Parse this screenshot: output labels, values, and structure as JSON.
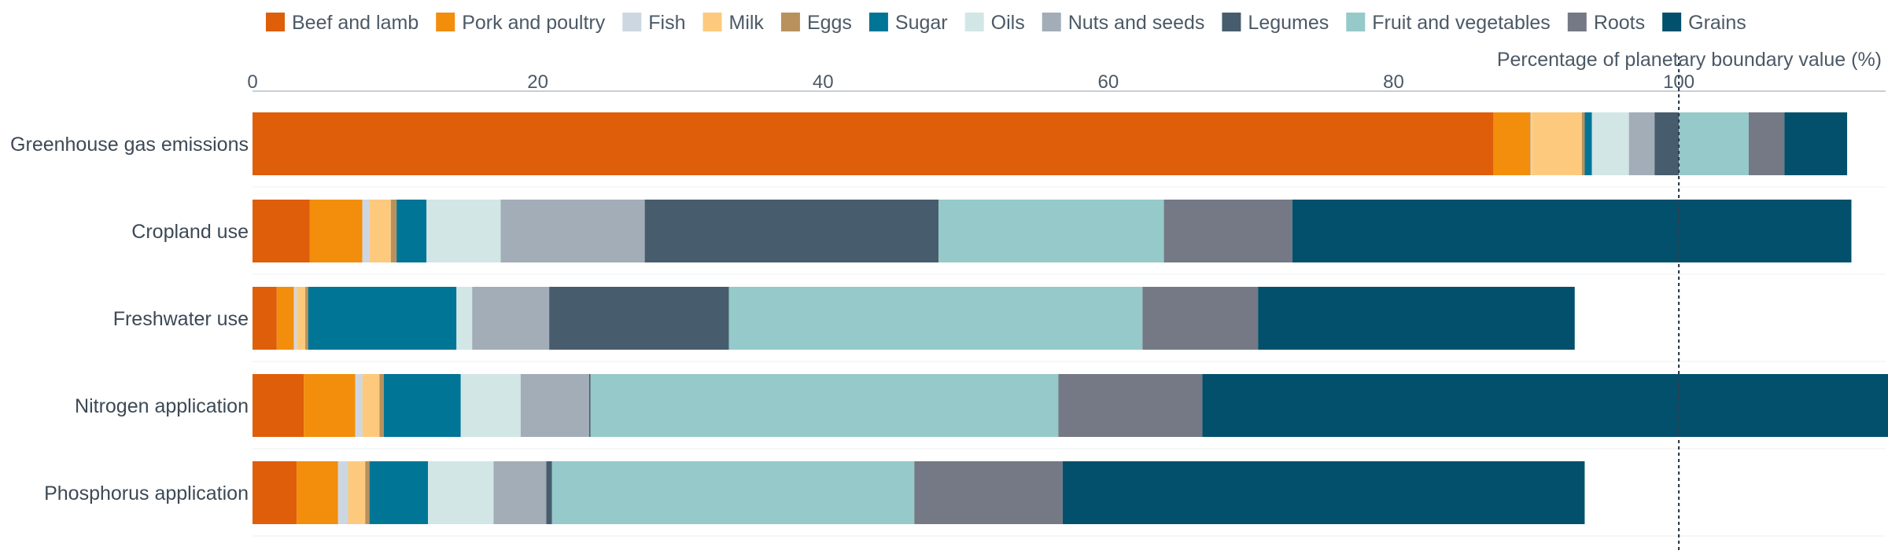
{
  "chart_data": {
    "type": "bar",
    "orientation": "horizontal",
    "stacked": true,
    "title": "",
    "xlabel": "Percentage of planetary boundary value (%)",
    "ylabel": "",
    "xlim": [
      0,
      114.5
    ],
    "xticks": [
      0,
      20,
      40,
      60,
      80,
      100
    ],
    "reference_line": {
      "value": 100,
      "style": "dotted"
    },
    "grid": true,
    "legend_position": "top",
    "categories": [
      "Greenhouse gas emissions",
      "Cropland use",
      "Freshwater use",
      "Nitrogen application",
      "Phosphorus application"
    ],
    "series": [
      {
        "name": "Beef and lamb",
        "color": "#df5e0a",
        "values": [
          87.0,
          4.0,
          1.7,
          3.6,
          3.1
        ]
      },
      {
        "name": "Pork and poultry",
        "color": "#f28e0c",
        "values": [
          2.6,
          3.7,
          1.2,
          3.6,
          2.9
        ]
      },
      {
        "name": "Fish",
        "color": "#cdd7e1",
        "values": [
          0.1,
          0.5,
          0.2,
          0.5,
          0.7
        ]
      },
      {
        "name": "Milk",
        "color": "#fdca7d",
        "values": [
          3.5,
          1.5,
          0.6,
          1.2,
          1.2
        ]
      },
      {
        "name": "Eggs",
        "color": "#b8915d",
        "values": [
          0.2,
          0.4,
          0.2,
          0.3,
          0.3
        ]
      },
      {
        "name": "Sugar",
        "color": "#007596",
        "values": [
          0.5,
          2.1,
          10.4,
          5.4,
          4.1
        ]
      },
      {
        "name": "Oils",
        "color": "#d2e6e6",
        "values": [
          2.6,
          5.2,
          1.1,
          4.2,
          4.6
        ]
      },
      {
        "name": "Nuts and seeds",
        "color": "#a2adb8",
        "values": [
          1.8,
          10.1,
          5.4,
          4.8,
          3.7
        ]
      },
      {
        "name": "Legumes",
        "color": "#475d6e",
        "values": [
          1.7,
          20.6,
          12.6,
          0.1,
          0.4
        ]
      },
      {
        "name": "Fruit and vegetables",
        "color": "#96c9c9",
        "values": [
          4.9,
          15.8,
          29.0,
          32.8,
          25.4
        ]
      },
      {
        "name": "Roots",
        "color": "#747985",
        "values": [
          2.5,
          9.0,
          8.1,
          10.1,
          10.4
        ]
      },
      {
        "name": "Grains",
        "color": "#02506b",
        "values": [
          4.4,
          39.2,
          22.2,
          48.3,
          36.6
        ]
      }
    ]
  }
}
